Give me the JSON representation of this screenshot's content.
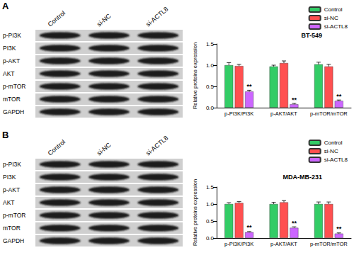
{
  "panels": [
    {
      "label": "A",
      "lanes": [
        "Control",
        "si-NC",
        "si-ACTL8"
      ],
      "proteins": [
        "p-PI3K",
        "PI3K",
        "p-AKT",
        "AKT",
        "p-mTOR",
        "mTOR",
        "GAPDH"
      ]
    },
    {
      "label": "B",
      "lanes": [
        "Control",
        "si-NC",
        "si-ACTL8"
      ],
      "proteins": [
        "p-PI3K",
        "PI3K",
        "p-AKT",
        "AKT",
        "p-mTOR",
        "mTOR",
        "GAPDH"
      ]
    }
  ],
  "chart_data": [
    {
      "type": "bar",
      "title": "BT-549",
      "ylabel": "Relative proteins expression",
      "categories": [
        "p-PI3K/PI3K",
        "p-AKT/AKT",
        "p-mTOR/mTOR"
      ],
      "series": [
        {
          "name": "Control",
          "color": "#33cc66",
          "values": [
            1.0,
            0.97,
            1.02
          ],
          "errors": [
            0.06,
            0.03,
            0.05
          ],
          "annotations": [
            null,
            null,
            null
          ]
        },
        {
          "name": "si-NC",
          "color": "#ff5050",
          "values": [
            0.98,
            1.05,
            0.97
          ],
          "errors": [
            0.04,
            0.05,
            0.05
          ],
          "annotations": [
            null,
            null,
            null
          ]
        },
        {
          "name": "si-ACTL8",
          "color": "#cc66ff",
          "values": [
            0.38,
            0.08,
            0.16
          ],
          "errors": [
            0.03,
            0.02,
            0.02
          ],
          "annotations": [
            "**",
            "**",
            "**"
          ]
        }
      ],
      "ylim": [
        0,
        1.5
      ],
      "yticks": [
        {
          "value": 0,
          "label": "0.0"
        },
        {
          "value": 0.5,
          "label": "0.5"
        },
        {
          "value": 1,
          "label": "1.0"
        },
        {
          "value": 1.5,
          "label": "1.5"
        }
      ],
      "grid": false,
      "legend": "upper right"
    },
    {
      "type": "bar",
      "title": "MDA-MB-231",
      "ylabel": "Relative proteins expression",
      "categories": [
        "p-PI3K/PI3K",
        "p-AKT/AKT",
        "p-mTOR/mTOR"
      ],
      "series": [
        {
          "name": "Control",
          "color": "#33cc66",
          "values": [
            1.0,
            1.0,
            1.0
          ],
          "errors": [
            0.04,
            0.05,
            0.06
          ],
          "annotations": [
            null,
            null,
            null
          ]
        },
        {
          "name": "si-NC",
          "color": "#ff5050",
          "values": [
            1.03,
            1.05,
            1.0
          ],
          "errors": [
            0.04,
            0.05,
            0.06
          ],
          "annotations": [
            null,
            null,
            null
          ]
        },
        {
          "name": "si-ACTL8",
          "color": "#cc66ff",
          "values": [
            0.17,
            0.3,
            0.13
          ],
          "errors": [
            0.02,
            0.03,
            0.02
          ],
          "annotations": [
            "**",
            "**",
            "**"
          ]
        }
      ],
      "ylim": [
        0,
        1.5
      ],
      "yticks": [
        {
          "value": 0,
          "label": "0.0"
        },
        {
          "value": 0.5,
          "label": "0.5"
        },
        {
          "value": 1,
          "label": "1.0"
        },
        {
          "value": 1.5,
          "label": "1.5"
        }
      ],
      "grid": false,
      "legend": "upper right"
    }
  ]
}
